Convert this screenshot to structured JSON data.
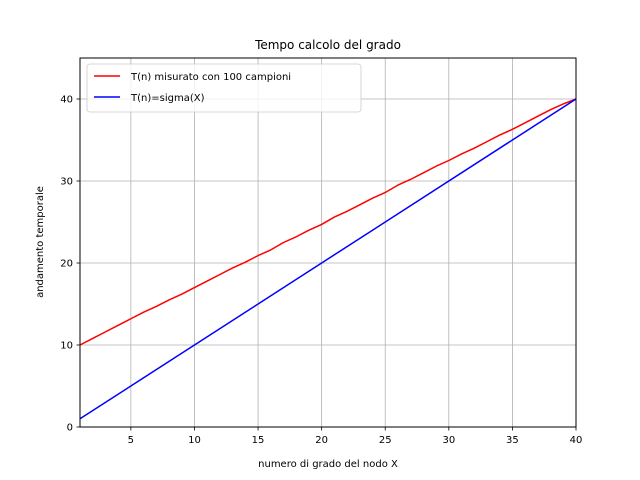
{
  "chart_data": {
    "type": "line",
    "title": "Tempo calcolo del grado",
    "xlabel": "numero di grado del nodo X",
    "ylabel": "andamento temporale",
    "xlim": [
      1,
      40
    ],
    "ylim": [
      0,
      45
    ],
    "xticks": [
      5,
      10,
      15,
      20,
      25,
      30,
      35,
      40
    ],
    "yticks": [
      0,
      10,
      20,
      30,
      40
    ],
    "grid": true,
    "legend_position": "top-left",
    "series": [
      {
        "name": "T(n) misurato con 100 campioni",
        "color": "#ff0000",
        "x": [
          1,
          2,
          3,
          4,
          5,
          6,
          7,
          8,
          9,
          10,
          11,
          12,
          13,
          14,
          15,
          16,
          17,
          18,
          19,
          20,
          21,
          22,
          23,
          24,
          25,
          26,
          27,
          28,
          29,
          30,
          31,
          32,
          33,
          34,
          35,
          36,
          37,
          38,
          39,
          40
        ],
        "values": [
          10.0,
          10.8,
          11.6,
          12.4,
          13.2,
          14.0,
          14.7,
          15.5,
          16.2,
          17.0,
          17.8,
          18.6,
          19.4,
          20.1,
          20.9,
          21.6,
          22.5,
          23.2,
          24.0,
          24.7,
          25.6,
          26.3,
          27.1,
          27.9,
          28.6,
          29.5,
          30.2,
          31.0,
          31.8,
          32.5,
          33.3,
          34.0,
          34.8,
          35.6,
          36.3,
          37.1,
          37.9,
          38.7,
          39.4,
          40.0
        ]
      },
      {
        "name": "T(n)=sigma(X)",
        "color": "#0000ff",
        "x": [
          1,
          40
        ],
        "values": [
          1,
          40
        ]
      }
    ]
  }
}
